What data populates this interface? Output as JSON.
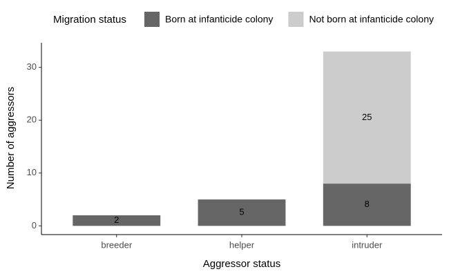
{
  "chart_data": {
    "type": "stacked_bar",
    "legend_title": "Migration status",
    "x_label": "Aggressor status",
    "y_label": "Number of aggressors",
    "categories": [
      "breeder",
      "helper",
      "intruder"
    ],
    "series": [
      {
        "name": "Born at infanticide colony",
        "color": "#666666",
        "values": [
          2,
          5,
          8
        ]
      },
      {
        "name": "Not born at infanticide colony",
        "color": "#cccccc",
        "values": [
          0,
          0,
          25
        ]
      }
    ],
    "ylim": [
      -1.65,
      34.65
    ],
    "yticks": [
      0,
      10,
      20,
      30
    ],
    "legend": "top"
  }
}
